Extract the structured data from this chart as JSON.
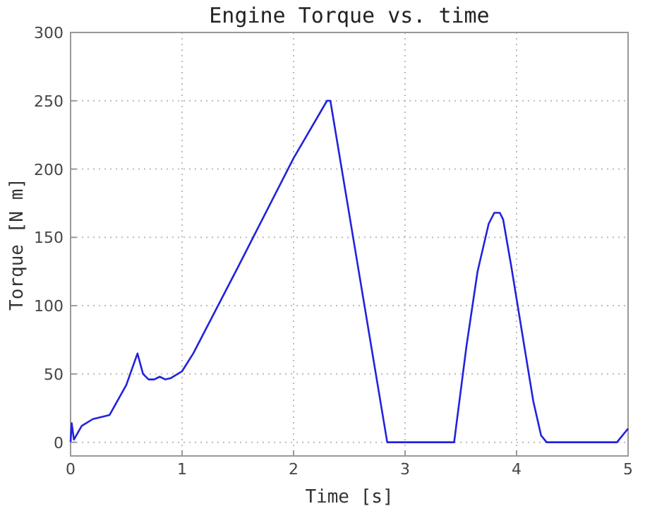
{
  "chart_data": {
    "type": "line",
    "title": "Engine Torque vs. time",
    "xlabel": "Time [s]",
    "ylabel": "Torque [N m]",
    "series": [
      {
        "color": "#2222dd",
        "x": [
          0,
          0.01,
          0.03,
          0.1,
          0.2,
          0.35,
          0.5,
          0.6,
          0.65,
          0.7,
          0.75,
          0.8,
          0.85,
          0.9,
          1.0,
          1.1,
          1.5,
          2.0,
          2.3,
          2.33,
          2.84,
          3.44,
          3.55,
          3.65,
          3.75,
          3.8,
          3.85,
          3.88,
          3.95,
          4.05,
          4.15,
          4.22,
          4.27,
          4.9,
          5.0
        ],
        "values": [
          0,
          14,
          2,
          12,
          17,
          20,
          42,
          65,
          50,
          46,
          46,
          48,
          46,
          47,
          52,
          65,
          128,
          208,
          250,
          250,
          0,
          0,
          70,
          125,
          160,
          168,
          168,
          163,
          130,
          80,
          30,
          5,
          0,
          0,
          10
        ]
      }
    ],
    "xlim": [
      0,
      5
    ],
    "ylim": [
      -10,
      300
    ],
    "xticks": [
      0,
      1,
      2,
      3,
      4,
      5
    ],
    "yticks": [
      0,
      50,
      100,
      150,
      200,
      250,
      300
    ],
    "grid": true,
    "line_style": "solid",
    "marker": "none"
  }
}
